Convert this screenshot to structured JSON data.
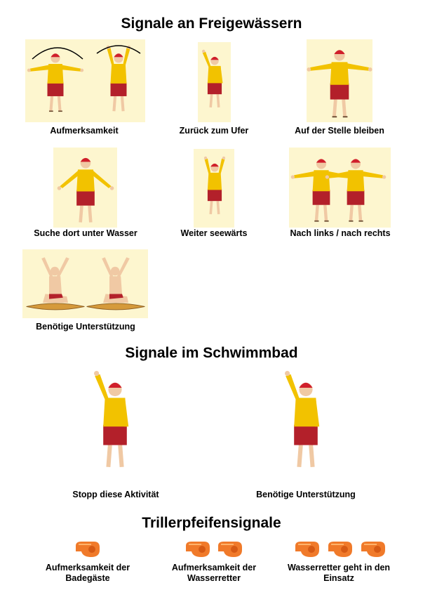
{
  "sections": {
    "open_water": {
      "title": "Signale an Freigewässern",
      "signals": [
        {
          "caption": "Aufmerksamkeit"
        },
        {
          "caption": "Zurück zum Ufer"
        },
        {
          "caption": "Auf der Stelle bleiben"
        },
        {
          "caption": "Suche dort unter Wasser"
        },
        {
          "caption": "Weiter seewärts"
        },
        {
          "caption": "Nach links / nach rechts"
        },
        {
          "caption": "Benötige Unterstützung"
        }
      ]
    },
    "pool": {
      "title": "Signale im Schwimmbad",
      "signals": [
        {
          "caption": "Stopp diese Aktivität"
        },
        {
          "caption": "Benötige Unterstützung"
        }
      ]
    },
    "whistle": {
      "title": "Trillerpfeifensignale",
      "signals": [
        {
          "caption_line1": "Aufmerksamkeit der",
          "caption_line2": "Badegäste",
          "whistle_count": 1
        },
        {
          "caption_line1": "Aufmerksamkeit der",
          "caption_line2": "Wasserretter",
          "whistle_count": 2
        },
        {
          "caption_line1": "Wasserretter geht in den",
          "caption_line2": "Einsatz",
          "whistle_count": 3
        }
      ]
    }
  },
  "colors": {
    "panel": "#fdf6cf",
    "shirt": "#f2c200",
    "shorts": "#b3202a",
    "cap": "#d01f2b",
    "skin": "#f0c9a4",
    "whistle": "#f07a2a"
  }
}
